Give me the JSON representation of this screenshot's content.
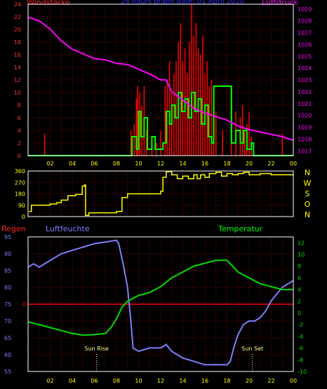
{
  "title": "24 hours graph date: 01 April 2020",
  "labels": {
    "windstaerke": "Windstärke",
    "luftdruck": "Luftdruck",
    "regen": "Regen",
    "luftfeuchte": "Luftfeuchte",
    "temperatur": "Temperatur",
    "sun_rise": "Sun Rise",
    "sun_set": "Sun Set"
  },
  "colors": {
    "background": "#000000",
    "grid": "#8b0000",
    "frame": "#ffffff",
    "x_ticks": "#ffff00",
    "wind_axis": "#ff3030",
    "pressure": "#ff00ff",
    "wind_gust": "#ff0000",
    "wind_avg": "#00ff00",
    "direction": "#ffff00",
    "humidity": "#7f7fff",
    "temperature": "#00dd00",
    "rain": "#ff0000",
    "title": "#3030ff"
  },
  "chart_data": [
    {
      "type": "bar",
      "name": "wind-pressure",
      "x_ticks": [
        "02",
        "04",
        "06",
        "08",
        "10",
        "12",
        "14",
        "16",
        "18",
        "20",
        "22",
        "00"
      ],
      "y_left_ticks": [
        "0",
        "2",
        "4",
        "6",
        "8",
        "10",
        "12",
        "14",
        "16",
        "18",
        "20",
        "22",
        "24"
      ],
      "y_right_ticks": [
        "1017",
        "1018",
        "1019",
        "1020",
        "1021",
        "1022",
        "1023",
        "1024",
        "1025",
        "1026",
        "1027",
        "1028",
        "1029"
      ],
      "ylim_left": [
        0,
        24
      ],
      "ylim_right": [
        1016.6,
        1029.4
      ],
      "xlim": [
        0,
        24
      ],
      "gusts": [
        [
          1.5,
          3.5
        ],
        [
          9.3,
          4
        ],
        [
          9.6,
          5
        ],
        [
          9.8,
          9
        ],
        [
          9.9,
          11
        ],
        [
          10.1,
          10
        ],
        [
          10.3,
          8
        ],
        [
          10.5,
          11
        ],
        [
          10.7,
          4
        ],
        [
          11.2,
          3
        ],
        [
          11.6,
          2
        ],
        [
          12.0,
          4
        ],
        [
          12.4,
          11
        ],
        [
          12.6,
          12
        ],
        [
          12.8,
          15
        ],
        [
          13.0,
          10
        ],
        [
          13.2,
          13
        ],
        [
          13.4,
          15
        ],
        [
          13.6,
          18
        ],
        [
          13.8,
          21
        ],
        [
          14.0,
          15
        ],
        [
          14.2,
          17
        ],
        [
          14.4,
          13
        ],
        [
          14.6,
          18
        ],
        [
          14.8,
          24
        ],
        [
          15.0,
          19
        ],
        [
          15.2,
          21
        ],
        [
          15.4,
          17
        ],
        [
          15.6,
          16
        ],
        [
          15.8,
          19
        ],
        [
          16.0,
          13
        ],
        [
          16.2,
          15
        ],
        [
          16.4,
          11
        ],
        [
          16.6,
          12
        ],
        [
          16.8,
          9
        ],
        [
          17.0,
          7
        ],
        [
          17.6,
          4
        ],
        [
          18.4,
          10
        ],
        [
          18.8,
          7
        ],
        [
          19.2,
          6
        ],
        [
          19.4,
          8
        ],
        [
          19.6,
          4
        ],
        [
          19.8,
          5
        ],
        [
          20.0,
          7
        ],
        [
          20.2,
          3
        ],
        [
          23.0,
          3.5
        ]
      ],
      "avg_step": [
        [
          0,
          0
        ],
        [
          9.4,
          0
        ],
        [
          9.4,
          3
        ],
        [
          9.8,
          1
        ],
        [
          10.0,
          7
        ],
        [
          10.2,
          3
        ],
        [
          10.5,
          6
        ],
        [
          10.8,
          1
        ],
        [
          11.2,
          3
        ],
        [
          11.5,
          1
        ],
        [
          12.2,
          2
        ],
        [
          12.5,
          7
        ],
        [
          12.8,
          5
        ],
        [
          13.0,
          8
        ],
        [
          13.3,
          6
        ],
        [
          13.6,
          10
        ],
        [
          13.9,
          7
        ],
        [
          14.2,
          9
        ],
        [
          14.5,
          6
        ],
        [
          14.8,
          10
        ],
        [
          15.1,
          7
        ],
        [
          15.4,
          9
        ],
        [
          15.7,
          5
        ],
        [
          16.0,
          8
        ],
        [
          16.3,
          3
        ],
        [
          16.6,
          2
        ],
        [
          16.8,
          11
        ],
        [
          18.4,
          11
        ],
        [
          18.4,
          2
        ],
        [
          18.8,
          4
        ],
        [
          19.2,
          2
        ],
        [
          19.5,
          4
        ],
        [
          19.8,
          1
        ],
        [
          20.2,
          2
        ],
        [
          20.4,
          0
        ],
        [
          24,
          0
        ]
      ],
      "pressure": [
        [
          0,
          1028.3
        ],
        [
          1,
          1028
        ],
        [
          2,
          1027.3
        ],
        [
          3,
          1026.3
        ],
        [
          4,
          1025.6
        ],
        [
          5,
          1025.2
        ],
        [
          6,
          1024.8
        ],
        [
          7,
          1024.7
        ],
        [
          8,
          1024.4
        ],
        [
          9,
          1024.3
        ],
        [
          10,
          1023.9
        ],
        [
          11,
          1023.5
        ],
        [
          12,
          1023.0
        ],
        [
          12.5,
          1023.0
        ],
        [
          13,
          1022.0
        ],
        [
          14,
          1021.3
        ],
        [
          15,
          1020.6
        ],
        [
          16,
          1020.2
        ],
        [
          17,
          1019.9
        ],
        [
          18,
          1019.6
        ],
        [
          19,
          1019.1
        ],
        [
          20,
          1018.8
        ],
        [
          21,
          1018.6
        ],
        [
          22,
          1018.4
        ],
        [
          23,
          1018.2
        ],
        [
          24,
          1017.9
        ]
      ]
    },
    {
      "type": "line",
      "name": "wind-direction",
      "y_left_ticks": [
        "0",
        "90",
        "180",
        "270",
        "360"
      ],
      "compass": [
        "N",
        "W",
        "S",
        "O",
        "N"
      ],
      "ylim": [
        0,
        360
      ],
      "xlim": [
        0,
        24
      ],
      "direction": [
        [
          0.1,
          40
        ],
        [
          0.3,
          90
        ],
        [
          2.0,
          100
        ],
        [
          2.6,
          110
        ],
        [
          3.0,
          130
        ],
        [
          3.6,
          165
        ],
        [
          4.3,
          175
        ],
        [
          4.9,
          240
        ],
        [
          5.1,
          250
        ],
        [
          5.2,
          10
        ],
        [
          5.5,
          30
        ],
        [
          8.0,
          40
        ],
        [
          8.5,
          150
        ],
        [
          9.0,
          180
        ],
        [
          12.0,
          200
        ],
        [
          12.2,
          310
        ],
        [
          12.5,
          355
        ],
        [
          13.0,
          330
        ],
        [
          13.5,
          300
        ],
        [
          14.0,
          320
        ],
        [
          14.5,
          300
        ],
        [
          15.0,
          330
        ],
        [
          15.3,
          300
        ],
        [
          15.6,
          330
        ],
        [
          16.0,
          310
        ],
        [
          16.4,
          340
        ],
        [
          17.0,
          350
        ],
        [
          17.5,
          320
        ],
        [
          18.0,
          340
        ],
        [
          18.5,
          330
        ],
        [
          19.0,
          340
        ],
        [
          19.5,
          350
        ],
        [
          20.0,
          330
        ],
        [
          21.0,
          340
        ],
        [
          22.0,
          330
        ],
        [
          24.0,
          330
        ]
      ]
    },
    {
      "type": "line",
      "name": "humidity-temperature",
      "x_ticks": [
        "02",
        "04",
        "06",
        "08",
        "10",
        "12",
        "14",
        "16",
        "18",
        "20",
        "22",
        "00"
      ],
      "humidity_ticks": [
        "55",
        "60",
        "65",
        "70",
        "75",
        "80",
        "85",
        "90",
        "95"
      ],
      "rain_tick": "0",
      "temperature_ticks": [
        "-10",
        "-8",
        "-6",
        "-4",
        "-2",
        "0",
        "2",
        "4",
        "6",
        "8",
        "10",
        "12"
      ],
      "ylim_humidity": [
        55,
        95
      ],
      "ylim_temperature": [
        -10,
        13
      ],
      "xlim": [
        0,
        24
      ],
      "rain": 0,
      "humidity": [
        [
          0,
          86
        ],
        [
          0.5,
          87
        ],
        [
          1,
          86
        ],
        [
          1.5,
          87
        ],
        [
          2,
          88
        ],
        [
          2.5,
          89
        ],
        [
          3,
          90
        ],
        [
          4,
          91
        ],
        [
          5,
          92
        ],
        [
          6,
          93
        ],
        [
          7,
          93.5
        ],
        [
          8,
          94
        ],
        [
          8.2,
          93
        ],
        [
          8.6,
          87
        ],
        [
          9,
          80
        ],
        [
          9.3,
          70
        ],
        [
          9.5,
          62
        ],
        [
          10,
          61
        ],
        [
          11,
          62
        ],
        [
          12,
          62
        ],
        [
          12.5,
          63
        ],
        [
          13,
          61
        ],
        [
          13.5,
          60
        ],
        [
          14,
          59
        ],
        [
          15,
          58
        ],
        [
          16,
          57
        ],
        [
          17,
          57
        ],
        [
          18,
          57
        ],
        [
          18.3,
          58
        ],
        [
          18.6,
          62
        ],
        [
          19,
          66
        ],
        [
          19.5,
          69
        ],
        [
          20,
          70
        ],
        [
          20.5,
          70
        ],
        [
          21,
          71
        ],
        [
          21.5,
          73
        ],
        [
          22,
          76
        ],
        [
          22.5,
          78
        ],
        [
          23,
          80
        ],
        [
          23.5,
          81
        ],
        [
          24,
          82
        ]
      ],
      "temperature": [
        [
          0,
          -1.5
        ],
        [
          1,
          -2
        ],
        [
          2,
          -2.5
        ],
        [
          3,
          -3
        ],
        [
          4,
          -3.5
        ],
        [
          5,
          -3.8
        ],
        [
          6,
          -3.7
        ],
        [
          7,
          -3.5
        ],
        [
          7.5,
          -2.5
        ],
        [
          8,
          -1
        ],
        [
          8.5,
          1
        ],
        [
          9,
          2
        ],
        [
          10,
          3
        ],
        [
          11,
          3.5
        ],
        [
          12,
          4.5
        ],
        [
          13,
          6
        ],
        [
          14,
          7
        ],
        [
          15,
          8
        ],
        [
          16,
          8.5
        ],
        [
          17,
          9
        ],
        [
          18,
          9
        ],
        [
          18.5,
          8
        ],
        [
          19,
          7
        ],
        [
          20,
          6
        ],
        [
          21,
          5
        ],
        [
          22,
          4.5
        ],
        [
          23,
          4
        ],
        [
          24,
          4
        ]
      ],
      "sun_rise": 6.2,
      "sun_set": 20.3
    }
  ]
}
